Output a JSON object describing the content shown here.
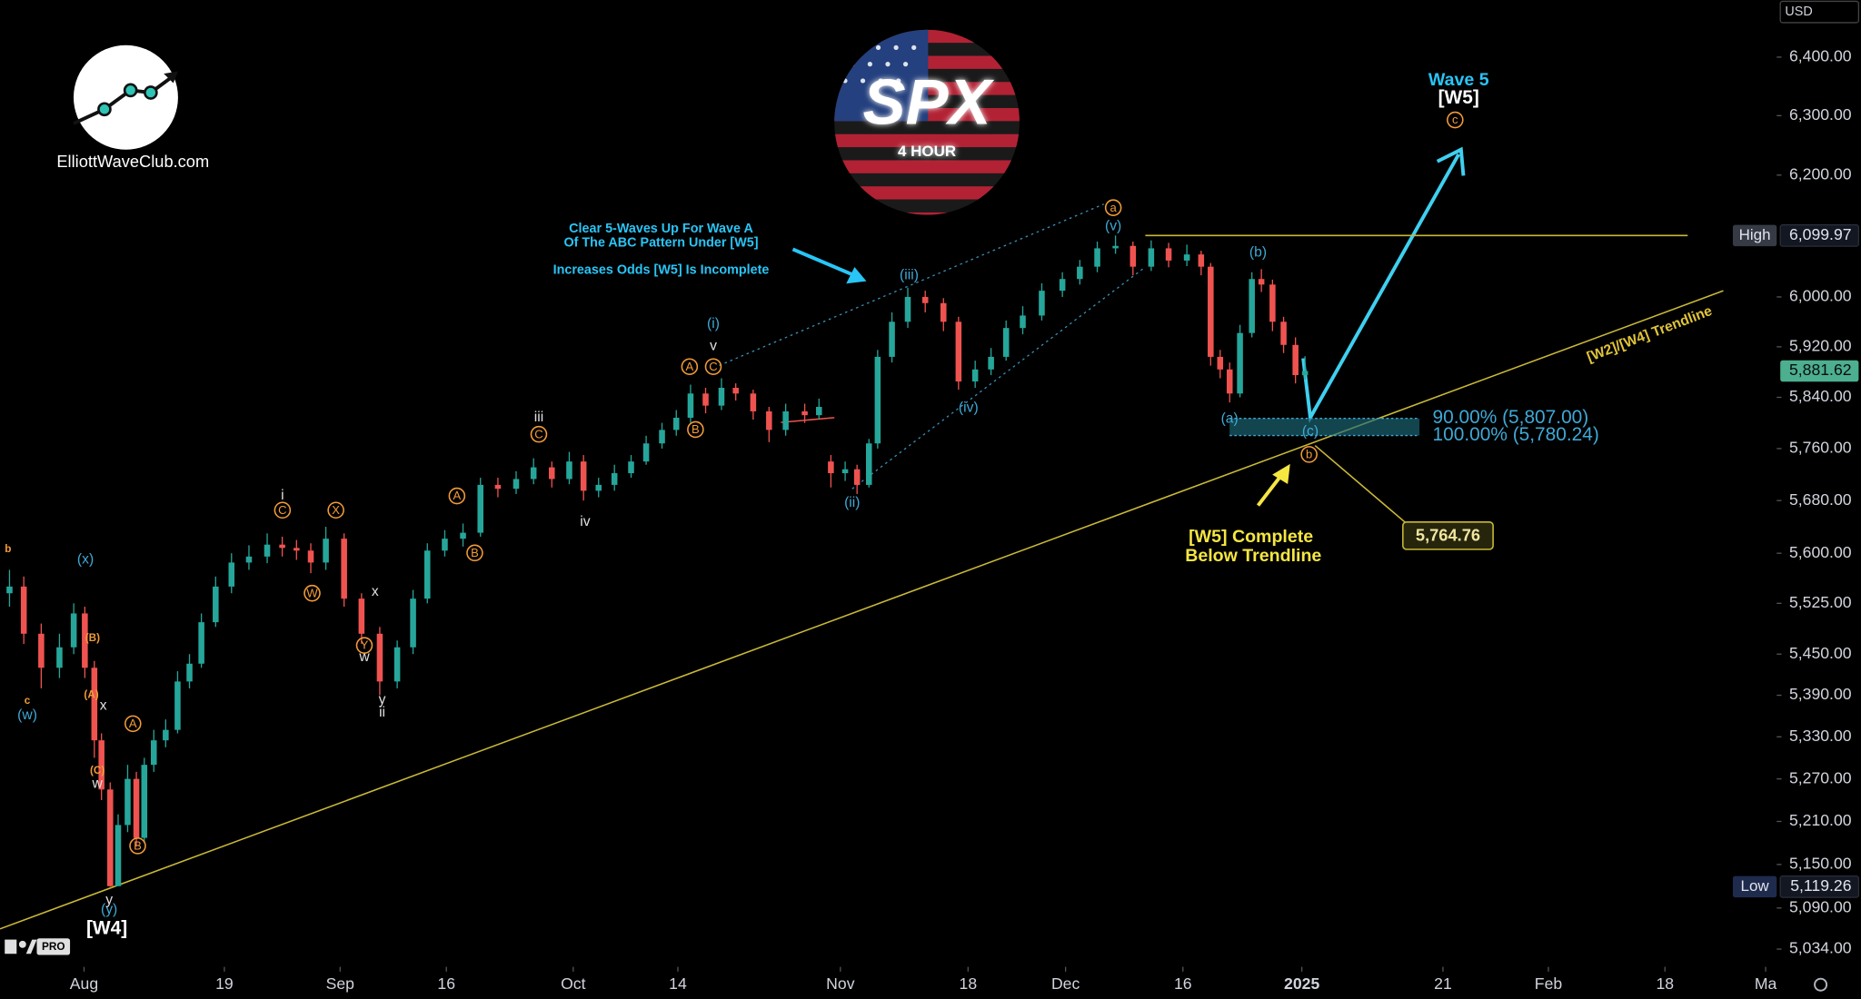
{
  "chart_data": {
    "type": "candlestick",
    "currency": "USD",
    "logo_text": "ElliottWaveClub.com",
    "symbol": "SPX",
    "timeframe": "4 HOUR",
    "platform_badge": "PRO",
    "log_scale": true,
    "up_color": "#26a69a",
    "down_color": "#ef5350",
    "xlim": [
      -10.6,
      213.2
    ],
    "xticks": [
      {
        "value": 0,
        "label": "Aug"
      },
      {
        "value": 17.7,
        "label": "19"
      },
      {
        "value": 32.3,
        "label": "Sep"
      },
      {
        "value": 45.7,
        "label": "16"
      },
      {
        "value": 61.7,
        "label": "Oct"
      },
      {
        "value": 74.9,
        "label": "14"
      },
      {
        "value": 95.4,
        "label": "Nov"
      },
      {
        "value": 111.5,
        "label": "18"
      },
      {
        "value": 123.8,
        "label": "Dec"
      },
      {
        "value": 138.6,
        "label": "16"
      },
      {
        "value": 153.6,
        "label": "2025"
      },
      {
        "value": 171.4,
        "label": "21"
      },
      {
        "value": 184.7,
        "label": "Feb"
      },
      {
        "value": 199.4,
        "label": "18"
      },
      {
        "value": 212.1,
        "label": "Ma"
      }
    ],
    "ylim": [
      5010,
      6499
    ],
    "yticks": [
      {
        "value": 6400,
        "label": "6,400.00"
      },
      {
        "value": 6300,
        "label": "6,300.00"
      },
      {
        "value": 6200,
        "label": "6,200.00"
      },
      {
        "value": 6000,
        "label": "6,000.00"
      },
      {
        "value": 5920,
        "label": "5,920.00"
      },
      {
        "value": 5840,
        "label": "5,840.00"
      },
      {
        "value": 5760,
        "label": "5,760.00"
      },
      {
        "value": 5680,
        "label": "5,680.00"
      },
      {
        "value": 5600,
        "label": "5,600.00"
      },
      {
        "value": 5525,
        "label": "5,525.00"
      },
      {
        "value": 5450,
        "label": "5,450.00"
      },
      {
        "value": 5390,
        "label": "5,390.00"
      },
      {
        "value": 5330,
        "label": "5,330.00"
      },
      {
        "value": 5270,
        "label": "5,270.00"
      },
      {
        "value": 5210,
        "label": "5,210.00"
      },
      {
        "value": 5150,
        "label": "5,150.00"
      },
      {
        "value": 5090,
        "label": "5,090.00"
      },
      {
        "value": 5034,
        "label": "5,034.00"
      }
    ],
    "x": [
      -9.4,
      -7.6,
      -5.4,
      -3.1,
      -1.3,
      0.1,
      1.3,
      2.2,
      3.3,
      4.3,
      5.5,
      6.6,
      7.6,
      8.8,
      10.3,
      11.8,
      13.3,
      14.8,
      16.6,
      18.6,
      20.8,
      23.1,
      25.0,
      26.8,
      28.6,
      30.5,
      32.8,
      35.0,
      37.3,
      39.5,
      41.5,
      43.3,
      45.5,
      47.8,
      50.0,
      52.2,
      54.5,
      56.7,
      59.0,
      61.2,
      63.0,
      64.9,
      66.9,
      69.0,
      70.9,
      72.9,
      74.7,
      76.5,
      78.4,
      80.4,
      82.2,
      84.4,
      86.4,
      88.5,
      90.9,
      92.7,
      94.2,
      96.0,
      97.5,
      99.0,
      100.1,
      101.9,
      103.9,
      106.1,
      108.4,
      110.3,
      112.4,
      114.4,
      116.3,
      118.4,
      120.8,
      123.4,
      125.6,
      127.8,
      130.1,
      132.3,
      134.6,
      136.8,
      139.1,
      140.9,
      142.1,
      143.3,
      144.5,
      145.8,
      147.3,
      148.5,
      149.9,
      151.3,
      152.8,
      154.0
    ],
    "open": [
      5540,
      5550,
      5480,
      5430,
      5460,
      5510,
      5430,
      5325,
      5255,
      5120,
      5205,
      5270,
      5187,
      5290,
      5325,
      5340,
      5410,
      5436,
      5497,
      5550,
      5586,
      5595,
      5613,
      5608,
      5604,
      5586,
      5622,
      5532,
      5480,
      5410,
      5460,
      5532,
      5604,
      5622,
      5631,
      5704,
      5698,
      5713,
      5731,
      5713,
      5740,
      5695,
      5704,
      5722,
      5740,
      5768,
      5789,
      5808,
      5846,
      5827,
      5855,
      5846,
      5818,
      5789,
      5818,
      5812,
      5740,
      5722,
      5728,
      5704,
      5768,
      5904,
      5960,
      6000,
      5990,
      5960,
      5865,
      5884,
      5904,
      5950,
      5970,
      6010,
      6029,
      6049,
      6079,
      6083,
      6049,
      6079,
      6059,
      6069,
      6049,
      5904,
      5884,
      5846,
      5942,
      6029,
      6020,
      5960,
      5923,
      5875
    ],
    "high": [
      5575,
      5565,
      5495,
      5480,
      5525,
      5520,
      5440,
      5335,
      5265,
      5220,
      5290,
      5280,
      5300,
      5340,
      5355,
      5425,
      5450,
      5510,
      5565,
      5600,
      5612,
      5630,
      5625,
      5620,
      5615,
      5640,
      5630,
      5540,
      5490,
      5470,
      5545,
      5615,
      5635,
      5645,
      5715,
      5715,
      5725,
      5745,
      5740,
      5755,
      5750,
      5715,
      5735,
      5750,
      5780,
      5800,
      5820,
      5860,
      5855,
      5870,
      5862,
      5852,
      5825,
      5830,
      5830,
      5838,
      5750,
      5740,
      5735,
      5775,
      5915,
      5975,
      6015,
      6010,
      5998,
      5968,
      5898,
      5918,
      5962,
      5985,
      6022,
      6040,
      6060,
      6090,
      6099.97,
      6090,
      6092,
      6088,
      6085,
      6075,
      6055,
      5915,
      5895,
      5955,
      6040,
      6045,
      6028,
      5968,
      5935,
      5905
    ],
    "low": [
      5520,
      5465,
      5400,
      5415,
      5450,
      5415,
      5300,
      5240,
      5119.26,
      5122,
      5195,
      5175,
      5180,
      5280,
      5315,
      5335,
      5400,
      5430,
      5490,
      5540,
      5575,
      5585,
      5595,
      5590,
      5570,
      5575,
      5520,
      5465,
      5390,
      5400,
      5450,
      5525,
      5595,
      5610,
      5625,
      5685,
      5690,
      5705,
      5700,
      5705,
      5680,
      5685,
      5695,
      5715,
      5735,
      5760,
      5780,
      5800,
      5815,
      5820,
      5835,
      5805,
      5770,
      5780,
      5800,
      5805,
      5700,
      5710,
      5690,
      5700,
      5760,
      5895,
      5950,
      5975,
      5945,
      5852,
      5855,
      5875,
      5898,
      5940,
      5962,
      6000,
      6020,
      6040,
      6070,
      6035,
      6042,
      6048,
      6050,
      6035,
      5890,
      5870,
      5832,
      5840,
      5935,
      6008,
      5945,
      5910,
      5862,
      5868
    ],
    "close": [
      5550,
      5480,
      5430,
      5460,
      5510,
      5430,
      5325,
      5255,
      5120,
      5205,
      5270,
      5187,
      5290,
      5325,
      5340,
      5410,
      5436,
      5497,
      5550,
      5586,
      5595,
      5613,
      5608,
      5604,
      5586,
      5622,
      5532,
      5480,
      5410,
      5460,
      5532,
      5604,
      5622,
      5631,
      5704,
      5698,
      5713,
      5731,
      5713,
      5740,
      5695,
      5704,
      5722,
      5740,
      5768,
      5789,
      5808,
      5846,
      5827,
      5855,
      5846,
      5818,
      5789,
      5818,
      5812,
      5825,
      5722,
      5728,
      5704,
      5768,
      5904,
      5960,
      6000,
      5990,
      5960,
      5865,
      5884,
      5904,
      5950,
      5970,
      6010,
      6029,
      6049,
      6079,
      6083,
      6049,
      6079,
      6059,
      6069,
      6049,
      5904,
      5884,
      5846,
      5942,
      6029,
      6020,
      5960,
      5923,
      5875,
      5881.62
    ],
    "price_tags": [
      {
        "label": "High",
        "value": 6099.97,
        "value_label": "6,099.97",
        "color": "#363a45"
      },
      {
        "value": 5881.62,
        "value_label": "5,881.62",
        "color": "#4caf8f"
      },
      {
        "label": "Low",
        "value": 5119.26,
        "value_label": "5,119.26",
        "color": "#1f2b4d"
      }
    ],
    "fib_levels": [
      {
        "price": 5807,
        "label": "90.00% (5,807.00)"
      },
      {
        "price": 5780.24,
        "label": "100.00% (5,780.24)"
      }
    ],
    "target": {
      "value": 5764.76,
      "label": "5,764.76"
    },
    "annotations": [
      {
        "text": "(x)",
        "color": "#3fa9d6"
      },
      {
        "text": "(w)",
        "color": "#3fa9d6"
      },
      {
        "text": "(y)",
        "color": "#3fa9d6"
      },
      {
        "text": "(i)",
        "color": "#3fa9d6"
      },
      {
        "text": "(ii)",
        "color": "#3fa9d6"
      },
      {
        "text": "(iii)",
        "color": "#3fa9d6"
      },
      {
        "text": "(iv)",
        "color": "#3fa9d6"
      },
      {
        "text": "(v)",
        "color": "#3fa9d6"
      },
      {
        "text": "(a)",
        "color": "#3fa9d6"
      },
      {
        "text": "(b)",
        "color": "#3fa9d6"
      },
      {
        "text": "(c)",
        "color": "#3fa9d6"
      },
      {
        "text": "[W4]",
        "color": "#ffffff",
        "bold": true
      },
      {
        "text": "x",
        "color": "#e0e0e0"
      },
      {
        "text": "w",
        "color": "#e0e0e0"
      },
      {
        "text": "y",
        "color": "#e0e0e0"
      },
      {
        "text": "i",
        "color": "#e0e0e0"
      },
      {
        "text": "x",
        "color": "#e0e0e0"
      },
      {
        "text": "w",
        "color": "#e0e0e0"
      },
      {
        "text": "y",
        "color": "#e0e0e0"
      },
      {
        "text": "ii",
        "color": "#e0e0e0"
      },
      {
        "text": "iii",
        "color": "#e0e0e0"
      },
      {
        "text": "iv",
        "color": "#e0e0e0"
      },
      {
        "text": "v",
        "color": "#e0e0e0"
      },
      {
        "text": "b",
        "color": "#f29b38"
      },
      {
        "text": "c",
        "color": "#f29b38"
      },
      {
        "text": "(B)",
        "color": "#f29b38"
      },
      {
        "text": "(A)",
        "color": "#f29b38"
      },
      {
        "text": "(C)",
        "color": "#f29b38"
      },
      {
        "text": "A",
        "color": "#f29b38",
        "circled": true
      },
      {
        "text": "B",
        "color": "#f29b38",
        "circled": true
      },
      {
        "text": "C",
        "color": "#f29b38",
        "circled": true
      },
      {
        "text": "X",
        "color": "#f29b38",
        "circled": true
      },
      {
        "text": "W",
        "color": "#f29b38",
        "circled": true
      },
      {
        "text": "Y",
        "color": "#f29b38",
        "circled": true
      },
      {
        "text": "C",
        "color": "#f29b38",
        "circled": true
      },
      {
        "text": "A",
        "color": "#f29b38",
        "circled": true
      },
      {
        "text": "B",
        "color": "#f29b38",
        "circled": true
      },
      {
        "text": "A",
        "color": "#f29b38",
        "circled": true
      },
      {
        "text": "C",
        "color": "#f29b38",
        "circled": true
      },
      {
        "text": "B",
        "color": "#f29b38",
        "circled": true
      },
      {
        "text": "a",
        "color": "#f29b38",
        "circled": true
      },
      {
        "text": "b",
        "color": "#f29b38",
        "circled": true
      },
      {
        "text": "c",
        "color": "#f29b38",
        "circled": true
      },
      {
        "text": "Clear 5-Waves Up For Wave A",
        "color": "#29c5f6",
        "bold": true
      },
      {
        "text": "Of The ABC Pattern Under [W5]",
        "color": "#29c5f6",
        "bold": true
      },
      {
        "text": "Increases Odds [W5] Is Incomplete",
        "color": "#29c5f6",
        "bold": true
      },
      {
        "text": "Wave 5",
        "color": "#29c5f6",
        "bold": true
      },
      {
        "text": "[W5]",
        "color": "#ffffff",
        "bold": true
      },
      {
        "text": "[W5] Complete",
        "color": "#f5e642",
        "bold": true
      },
      {
        "text": "Below Trendline",
        "color": "#f5e642",
        "bold": true
      },
      {
        "text": "[W2]/[W4] Trendline",
        "color": "#e0c43a",
        "bold": true
      }
    ]
  }
}
